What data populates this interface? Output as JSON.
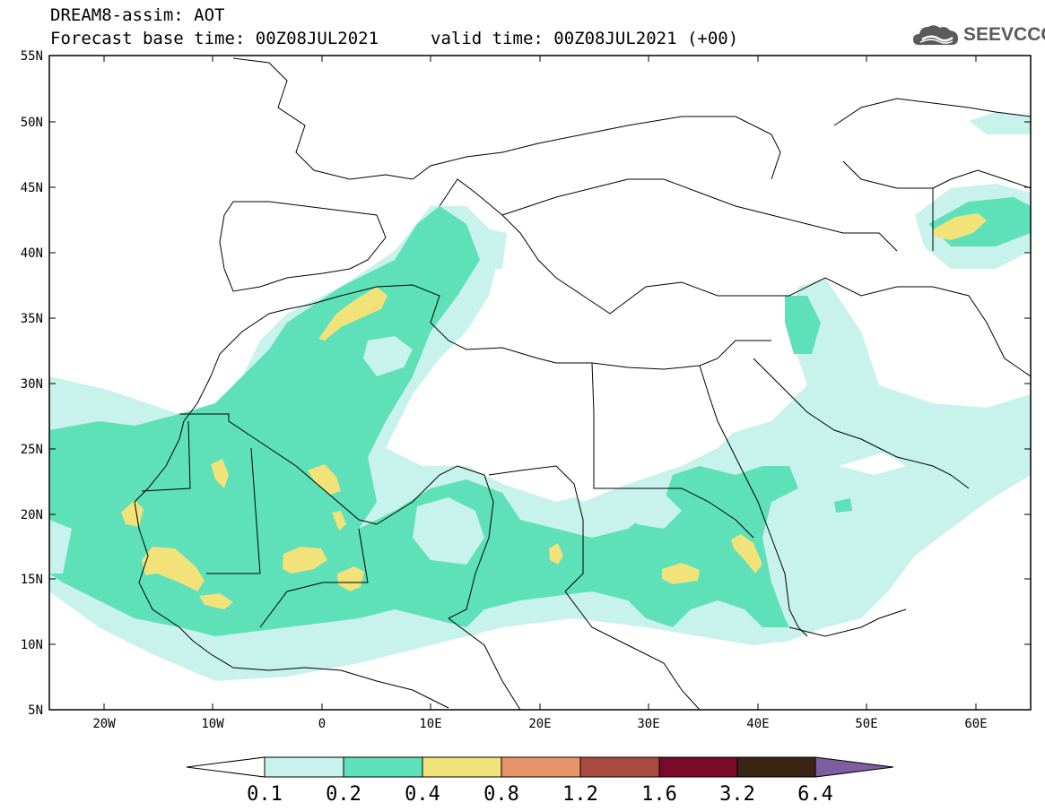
{
  "header": {
    "title": "DREAM8-assim: AOT",
    "base_time": "Forecast base time: 00Z08JUL2021",
    "valid_time": "valid time: 00Z08JUL2021 (+00)"
  },
  "logo": {
    "text": "SEEVCCC",
    "icon": "cloud-icon"
  },
  "axes": {
    "lat_labels": [
      "55N",
      "50N",
      "45N",
      "40N",
      "35N",
      "30N",
      "25N",
      "20N",
      "15N",
      "10N",
      "5N"
    ],
    "lon_labels": [
      "20W",
      "10W",
      "0",
      "10E",
      "20E",
      "30E",
      "40E",
      "50E",
      "60E"
    ]
  },
  "colorbar": {
    "labels": [
      "0.1",
      "0.2",
      "0.4",
      "0.8",
      "1.2",
      "1.6",
      "3.2",
      "6.4"
    ],
    "colors": [
      "#ffffff",
      "#c8f2ec",
      "#5ee0b8",
      "#f2e27a",
      "#e8946a",
      "#a84a3e",
      "#7a0a2a",
      "#3a2414",
      "#7e5ea0"
    ]
  },
  "colors": {
    "level1": "#c8f2ec",
    "level2": "#5ee0b8",
    "level3": "#f2e27a",
    "border": "#000000"
  }
}
